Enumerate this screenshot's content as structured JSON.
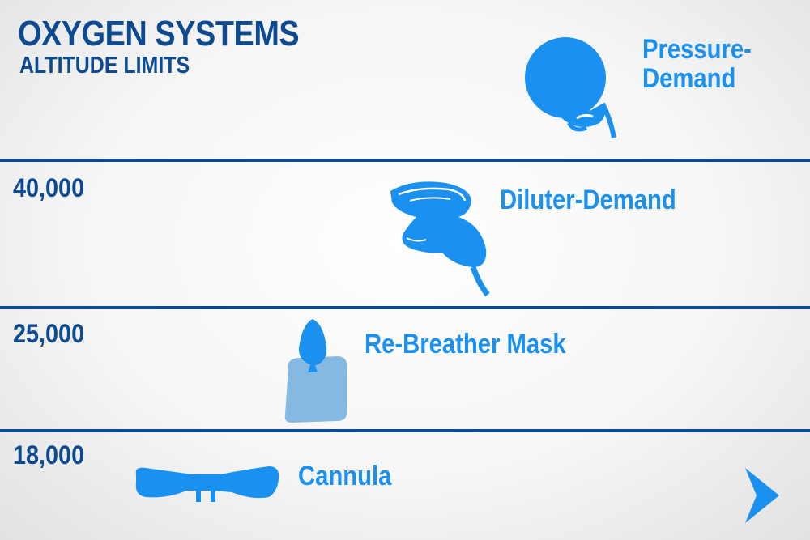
{
  "header": {
    "title": "OXYGEN SYSTEMS",
    "subtitle": "ALTITUDE LIMITS"
  },
  "altitudes": [
    "40,000",
    "25,000",
    "18,000"
  ],
  "systems": [
    {
      "label": "Pressure-\nDemand",
      "icon": "pressure-helmet-icon"
    },
    {
      "label": "Diluter-Demand",
      "icon": "diluter-demand-mask-icon"
    },
    {
      "label": "Re-Breather Mask",
      "icon": "rebreather-mask-icon"
    },
    {
      "label": "Cannula",
      "icon": "nasal-cannula-icon"
    }
  ],
  "navigation": {
    "next_icon": "chevron-right-icon"
  },
  "colors": {
    "title": "#0d4a8f",
    "divider": "#0d4a8f",
    "device": "#1a90f0",
    "rebreather_bag": "#86b9e2",
    "next_arrow": "#1a90f0"
  }
}
